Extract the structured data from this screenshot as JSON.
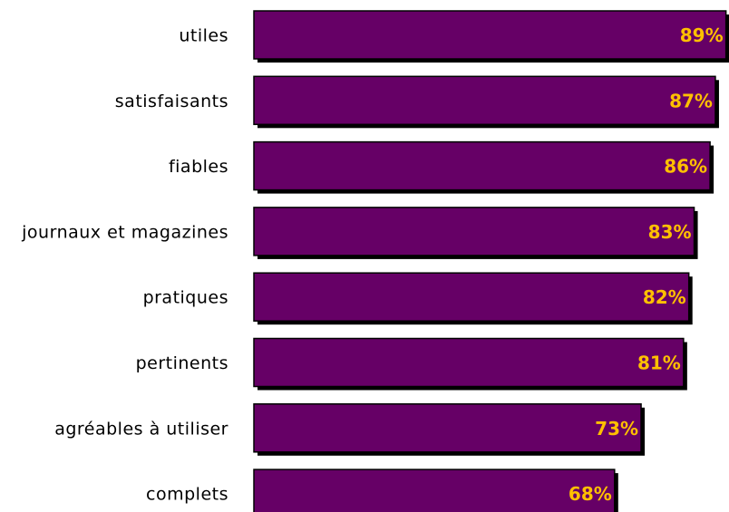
{
  "chart_data": {
    "type": "bar",
    "orientation": "horizontal",
    "categories": [
      "utiles",
      "satisfaisants",
      "fiables",
      "journaux et magazines",
      "pratiques",
      "pertinents",
      "agréables à utiliser",
      "complets"
    ],
    "values": [
      89,
      87,
      86,
      83,
      82,
      81,
      73,
      68
    ],
    "value_labels": [
      "89%",
      "87%",
      "86%",
      "83%",
      "82%",
      "81%",
      "73%",
      "68%"
    ],
    "xlim": [
      0,
      100
    ],
    "grid": false,
    "legend": "none",
    "colors": {
      "bar": "#660066",
      "bar_edge": "#000000",
      "shadow": "#000000",
      "value_text": "#FFC000",
      "category_text": "#000000"
    }
  }
}
